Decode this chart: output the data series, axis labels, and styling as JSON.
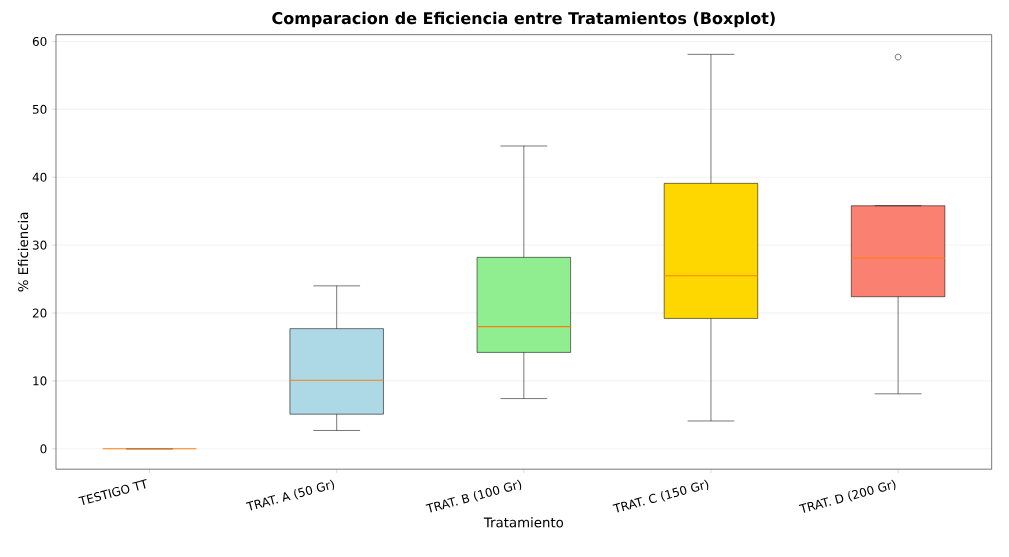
{
  "chart_data": {
    "type": "box",
    "title": "Comparacion de Eficiencia entre Tratamientos (Boxplot)",
    "xlabel": "Tratamiento",
    "ylabel": "% Eficiencia",
    "categories": [
      "TESTIGO TT",
      "TRAT. A (50 Gr)",
      "TRAT. B (100 Gr)",
      "TRAT. C (150 Gr)",
      "TRAT. D (200 Gr)"
    ],
    "colors": [
      null,
      "#add8e6",
      "#90ee90",
      "#ffd700",
      "#fa8072"
    ],
    "boxes": [
      {
        "low": 0,
        "q1": 0,
        "median": 0,
        "q3": 0,
        "high": 0
      },
      {
        "low": 2.7,
        "q1": 5.1,
        "median": 10.1,
        "q3": 17.7,
        "high": 24.0
      },
      {
        "low": 7.4,
        "q1": 14.2,
        "median": 18.0,
        "q3": 28.2,
        "high": 44.6
      },
      {
        "low": 4.1,
        "q1": 19.2,
        "median": 25.5,
        "q3": 39.1,
        "high": 58.1
      },
      {
        "low": 8.1,
        "q1": 22.4,
        "median": 28.1,
        "q3": 35.8,
        "high": 35.8,
        "outliers": [
          57.7
        ]
      }
    ],
    "ylim": [
      -3,
      61
    ],
    "yticks": [
      0,
      10,
      20,
      30,
      40,
      50,
      60
    ],
    "grid": "y"
  }
}
